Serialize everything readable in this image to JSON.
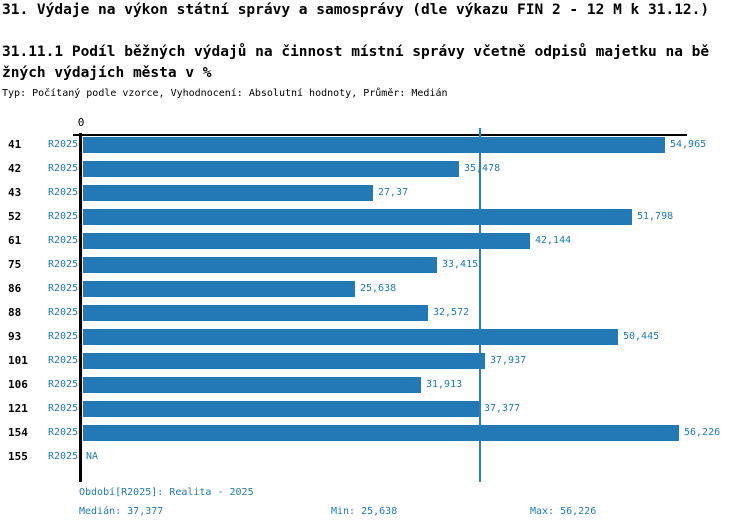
{
  "title": "31. Výdaje na výkon státní správy a samosprávy (dle výkazu FIN 2 - 12 M k 31.12.)",
  "subtitle": {
    "line1": "31.11.1 Podíl běžných výdajů na činnost místní správy včetně odpisů majetku na bě",
    "line2": "žných výdajích města v %"
  },
  "meta_line": "Typ: Počítaný podle vzorce, Vyhodnocení: Absolutní hodnoty, Průměr: Medián",
  "chart_data": {
    "type": "bar",
    "orientation": "horizontal",
    "title": "31.11.1 Podíl běžných výdajů na činnost místní správy včetně odpisů majetku na běžných výdajích města v %",
    "axis_zero_label": "0",
    "series_name": "R2025",
    "categories": [
      "41",
      "42",
      "43",
      "52",
      "61",
      "75",
      "86",
      "88",
      "93",
      "101",
      "106",
      "121",
      "154",
      "155"
    ],
    "values": [
      54.965,
      35.478,
      27.37,
      51.798,
      42.144,
      33.415,
      25.638,
      32.572,
      50.445,
      37.937,
      31.913,
      37.377,
      56.226,
      null
    ],
    "value_labels": [
      "54,965",
      "35,478",
      "27,37",
      "51,798",
      "42,144",
      "33,415",
      "25,638",
      "32,572",
      "50,445",
      "37,937",
      "31,913",
      "37,377",
      "56,226",
      "NA"
    ],
    "xlim": [
      0,
      57
    ],
    "median_value": 37.377,
    "bar_color": "#2379b5",
    "median_line_color": "#2c7fb8",
    "grid": false,
    "legend": false
  },
  "footer": {
    "period_label": "Období[R2025]: Realita - 2025",
    "median_label": "Medián: 37,377",
    "min_label": "Min: 25,638",
    "max_label": "Max: 56,226"
  }
}
